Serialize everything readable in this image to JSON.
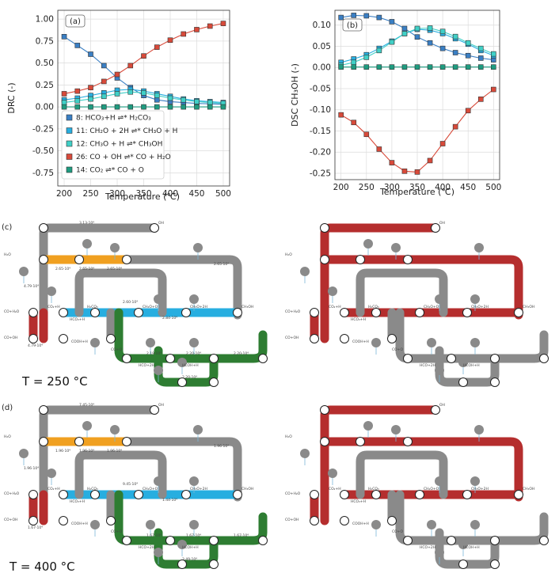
{
  "chart_data": [
    {
      "type": "line",
      "panel_label": "(a)",
      "xlabel": "Temperature (℃)",
      "ylabel": "DRC (-)",
      "xlim": [
        188,
        512
      ],
      "ylim": [
        -0.9,
        1.1
      ],
      "xticks": [
        "200",
        "250",
        "300",
        "350",
        "400",
        "450",
        "500"
      ],
      "yticks": [
        "1.00",
        "0.75",
        "0.50",
        "0.25",
        "0.00",
        "-0.25",
        "-0.50",
        "-0.75"
      ],
      "grid": true,
      "legend_position": "bottom-left",
      "x": [
        200,
        225,
        250,
        275,
        300,
        325,
        350,
        375,
        400,
        425,
        450,
        475,
        500
      ],
      "series": [
        {
          "name": "8: HCO₃+H ⇌* H₂CO₃",
          "color": "#3a7fc4",
          "values": [
            0.8,
            0.7,
            0.6,
            0.47,
            0.33,
            0.22,
            0.13,
            0.08,
            0.06,
            0.05,
            0.04,
            0.035,
            0.03
          ]
        },
        {
          "name": "11: CH₂O + 2H ⇌* CH₃O + H",
          "color": "#27aee0",
          "values": [
            0.08,
            0.1,
            0.13,
            0.16,
            0.19,
            0.2,
            0.18,
            0.15,
            0.12,
            0.09,
            0.07,
            0.06,
            0.05
          ]
        },
        {
          "name": "12: CH₃O + H ⇌* CH₃OH",
          "color": "#40d0c7",
          "values": [
            0.05,
            0.07,
            0.09,
            0.12,
            0.15,
            0.17,
            0.16,
            0.13,
            0.1,
            0.08,
            0.06,
            0.05,
            0.04
          ]
        },
        {
          "name": "26: CO + OH ⇌* CO + H₂O",
          "color": "#d84a3a",
          "values": [
            0.15,
            0.18,
            0.22,
            0.29,
            0.37,
            0.47,
            0.58,
            0.68,
            0.76,
            0.83,
            0.88,
            0.92,
            0.95
          ]
        },
        {
          "name": "14: CO₂ ⇌* CO + O",
          "color": "#1e9c80",
          "values": [
            0.0,
            0.0,
            0.0,
            0.0,
            0.0,
            0.0,
            0.0,
            0.0,
            0.0,
            0.0,
            0.0,
            0.0,
            0.0
          ]
        }
      ]
    },
    {
      "type": "line",
      "panel_label": "(b)",
      "xlabel": "Temperature (℃)",
      "ylabel": "DSC CH₃OH (-)",
      "xlim": [
        188,
        512
      ],
      "ylim": [
        -0.265,
        0.135
      ],
      "xticks": [
        "200",
        "250",
        "300",
        "350",
        "400",
        "450",
        "500"
      ],
      "yticks": [
        "0.10",
        "0.05",
        "0.00",
        "-0.05",
        "-0.10",
        "-0.15",
        "-0.20",
        "-0.25"
      ],
      "grid": true,
      "x": [
        200,
        225,
        250,
        275,
        300,
        325,
        350,
        375,
        400,
        425,
        450,
        475,
        500
      ],
      "series": [
        {
          "color": "#3a7fc4",
          "values": [
            0.118,
            0.123,
            0.122,
            0.118,
            0.108,
            0.092,
            0.072,
            0.058,
            0.045,
            0.035,
            0.028,
            0.022,
            0.018
          ]
        },
        {
          "color": "#27aee0",
          "values": [
            0.012,
            0.02,
            0.03,
            0.045,
            0.062,
            0.08,
            0.09,
            0.088,
            0.08,
            0.068,
            0.055,
            0.04,
            0.028
          ]
        },
        {
          "color": "#40d0c7",
          "values": [
            0.005,
            0.012,
            0.024,
            0.04,
            0.06,
            0.08,
            0.092,
            0.093,
            0.085,
            0.073,
            0.058,
            0.045,
            0.032
          ]
        },
        {
          "color": "#d84a3a",
          "values": [
            -0.112,
            -0.13,
            -0.158,
            -0.193,
            -0.225,
            -0.245,
            -0.247,
            -0.22,
            -0.18,
            -0.14,
            -0.102,
            -0.075,
            -0.052
          ]
        },
        {
          "color": "#1e9c80",
          "values": [
            0.001,
            0.001,
            0.001,
            0.001,
            0.001,
            0.001,
            0.001,
            0.001,
            0.001,
            0.001,
            0.001,
            0.001,
            0.001
          ]
        }
      ]
    }
  ],
  "networks": {
    "c_label": "(c)",
    "d_label": "(d)",
    "c_temp": "T = 250 °C",
    "d_temp": "T = 400 °C",
    "c_rates": [
      "3.13·10⁴",
      "2.65·10⁴",
      "2.65·10⁴",
      "2.65·10⁴",
      "4.79·10⁴",
      "2.65·10⁴",
      "2.60·10⁴",
      "2.84·10⁴",
      "2.19·10⁴",
      "2.20·10⁴",
      "2.20·10⁴",
      "2.20·10⁴",
      "4.79·10⁴"
    ],
    "d_rates": [
      "7.45·10⁴",
      "1.96·10⁴",
      "1.96·10⁴",
      "1.96·10⁴",
      "1.96·10⁴",
      "1.96·10⁴",
      "9.45·10⁴",
      "1.44·10⁴",
      "1.67·10⁴",
      "1.67·10⁴",
      "1.67·10⁴",
      "3.49·10⁴",
      "1.67·10⁴"
    ],
    "species": [
      "CO+H₂O",
      "CO+OH",
      "CO₂+H",
      "HCO₃+H",
      "H₂CO₃",
      "CH₂O+O",
      "CH₃O+2H",
      "CH₃OH",
      "HCO+2H",
      "HCOH+H",
      "COOH+H",
      "CO+O",
      "OH",
      "H₂O"
    ]
  },
  "colors": {
    "blue": "#3a7fc4",
    "lightblue": "#27aee0",
    "cyan": "#40d0c7",
    "red": "#d84a3a",
    "teal": "#1e9c80",
    "green": "#2e7d32",
    "orange": "#f0a020",
    "grey": "#8a8a8a",
    "darkred": "#b52e2e"
  }
}
